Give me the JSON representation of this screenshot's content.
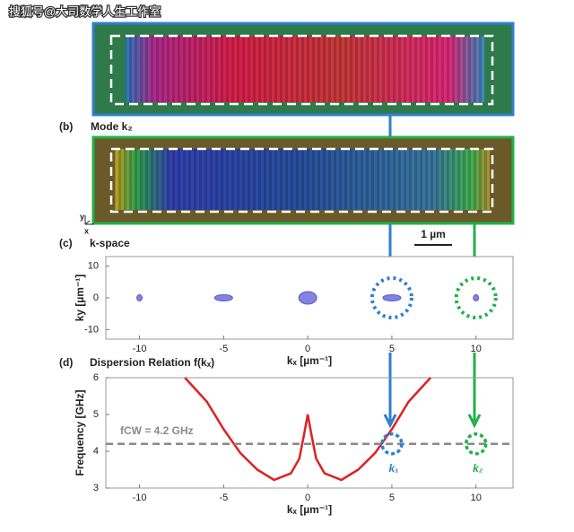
{
  "watermark": "搜狐号@大司数学人生工作室",
  "panel_b": {
    "label": "(b)",
    "title": "Mode k₂"
  },
  "axes_labels": {
    "x": "x",
    "y": "y"
  },
  "scale_bar": "1 µm",
  "chart_data": [
    {
      "type": "scatter",
      "label": "(c)",
      "title": "k-space",
      "x_label": "kₓ [µm⁻¹]",
      "y_label": "ky [µm⁻¹]",
      "xlim": [
        -12,
        12.2
      ],
      "ylim": [
        -13,
        13
      ],
      "xticks": [
        -10,
        -5,
        0,
        5,
        10
      ],
      "yticks": [
        -10,
        0,
        10
      ],
      "series": [
        {
          "color": "#5a5ad0",
          "x": [
            -10,
            -5,
            0,
            5,
            10
          ],
          "values": [
            0,
            0,
            0,
            0,
            0
          ]
        }
      ],
      "markers": {
        "x": [
          5,
          10
        ],
        "values": [
          0,
          0
        ],
        "colors": [
          "#2f7fd0",
          "#22b04a"
        ]
      }
    },
    {
      "type": "line",
      "label": "(d)",
      "title": "Dispersion Relation f(kₓ)",
      "x_label": "kₓ [µm⁻¹]",
      "y_label": "Frequency [GHz]",
      "xlim": [
        -12,
        12.2
      ],
      "ylim": [
        3,
        6
      ],
      "xticks": [
        -10,
        -5,
        0,
        5,
        10
      ],
      "yticks": [
        3,
        4,
        5,
        6
      ],
      "series": [
        {
          "color": "#e02020",
          "x": [
            -7.3,
            -6,
            -5,
            -4,
            -3,
            -2,
            -1,
            -0.5,
            -0.2,
            0,
            0.2,
            0.5,
            1,
            2,
            3,
            4,
            5,
            6,
            7.3
          ],
          "values": [
            6,
            5.35,
            4.6,
            3.95,
            3.5,
            3.22,
            3.4,
            3.8,
            4.5,
            5,
            4.5,
            3.8,
            3.4,
            3.22,
            3.5,
            3.95,
            4.6,
            5.35,
            6
          ]
        }
      ],
      "reference_line": {
        "value": 4.2,
        "label": "fCW = 4.2 GHz",
        "color": "#8a8a8a"
      },
      "markers": {
        "x": [
          5,
          10
        ],
        "values": [
          4.2,
          4.2
        ],
        "labels": [
          "k₁",
          "k₂"
        ],
        "colors": [
          "#2f7fd0",
          "#22b04a"
        ]
      }
    }
  ]
}
